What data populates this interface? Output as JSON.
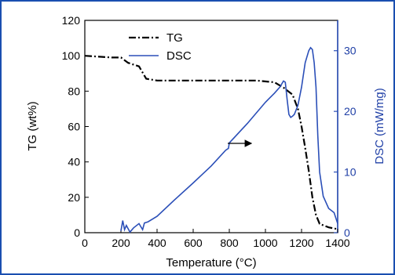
{
  "chart_data": {
    "type": "line",
    "xlabel": "Temperature (°C)",
    "ylabel_left": "TG (wt%)",
    "ylabel_right": "DSC (mW/mg)",
    "xlim": [
      0,
      1400
    ],
    "ylim_left": [
      0,
      120
    ],
    "ylim_right": [
      0,
      35
    ],
    "xticks": [
      "0",
      "200",
      "400",
      "600",
      "800",
      "1000",
      "1200",
      "1400"
    ],
    "yticks_left": [
      "0",
      "20",
      "40",
      "60",
      "80",
      "100",
      "120"
    ],
    "yticks_right": [
      "0",
      "10",
      "20",
      "30"
    ],
    "legend_position": "top-center",
    "arrow_annotation": "DSC curve points to right axis",
    "series": [
      {
        "name": "TG",
        "axis": "left",
        "color": "#000000",
        "style": "dash-dot",
        "x": [
          0,
          150,
          200,
          240,
          300,
          340,
          400,
          600,
          800,
          950,
          1050,
          1100,
          1150,
          1180,
          1200,
          1220,
          1240,
          1260,
          1280,
          1300,
          1350,
          1400
        ],
        "y": [
          100,
          99,
          99,
          96,
          94,
          87,
          86,
          86,
          86,
          86,
          85,
          82,
          78,
          70,
          60,
          48,
          35,
          20,
          10,
          5,
          3,
          2
        ]
      },
      {
        "name": "DSC",
        "axis": "right",
        "color": "#2b4fb8",
        "style": "solid",
        "x": [
          200,
          210,
          220,
          230,
          250,
          270,
          300,
          320,
          330,
          350,
          400,
          500,
          600,
          700,
          780,
          795,
          800,
          900,
          1000,
          1050,
          1080,
          1100,
          1110,
          1120,
          1130,
          1140,
          1150,
          1160,
          1180,
          1200,
          1220,
          1240,
          1250,
          1260,
          1270,
          1280,
          1290,
          1300,
          1320,
          1350,
          1380,
          1400
        ],
        "y": [
          0.3,
          2.0,
          0.5,
          1.2,
          0.1,
          0.8,
          1.5,
          0.5,
          1.6,
          1.8,
          2.7,
          5.5,
          8.2,
          11.0,
          13.6,
          13.9,
          14.8,
          18.0,
          21.5,
          23.0,
          24.0,
          25.0,
          24.8,
          22.0,
          19.5,
          19.0,
          19.2,
          19.5,
          21.0,
          24.0,
          28.0,
          30.0,
          30.5,
          30.2,
          28.0,
          24.0,
          16.0,
          10.0,
          6.0,
          4.0,
          3.3,
          1.5
        ]
      }
    ]
  }
}
